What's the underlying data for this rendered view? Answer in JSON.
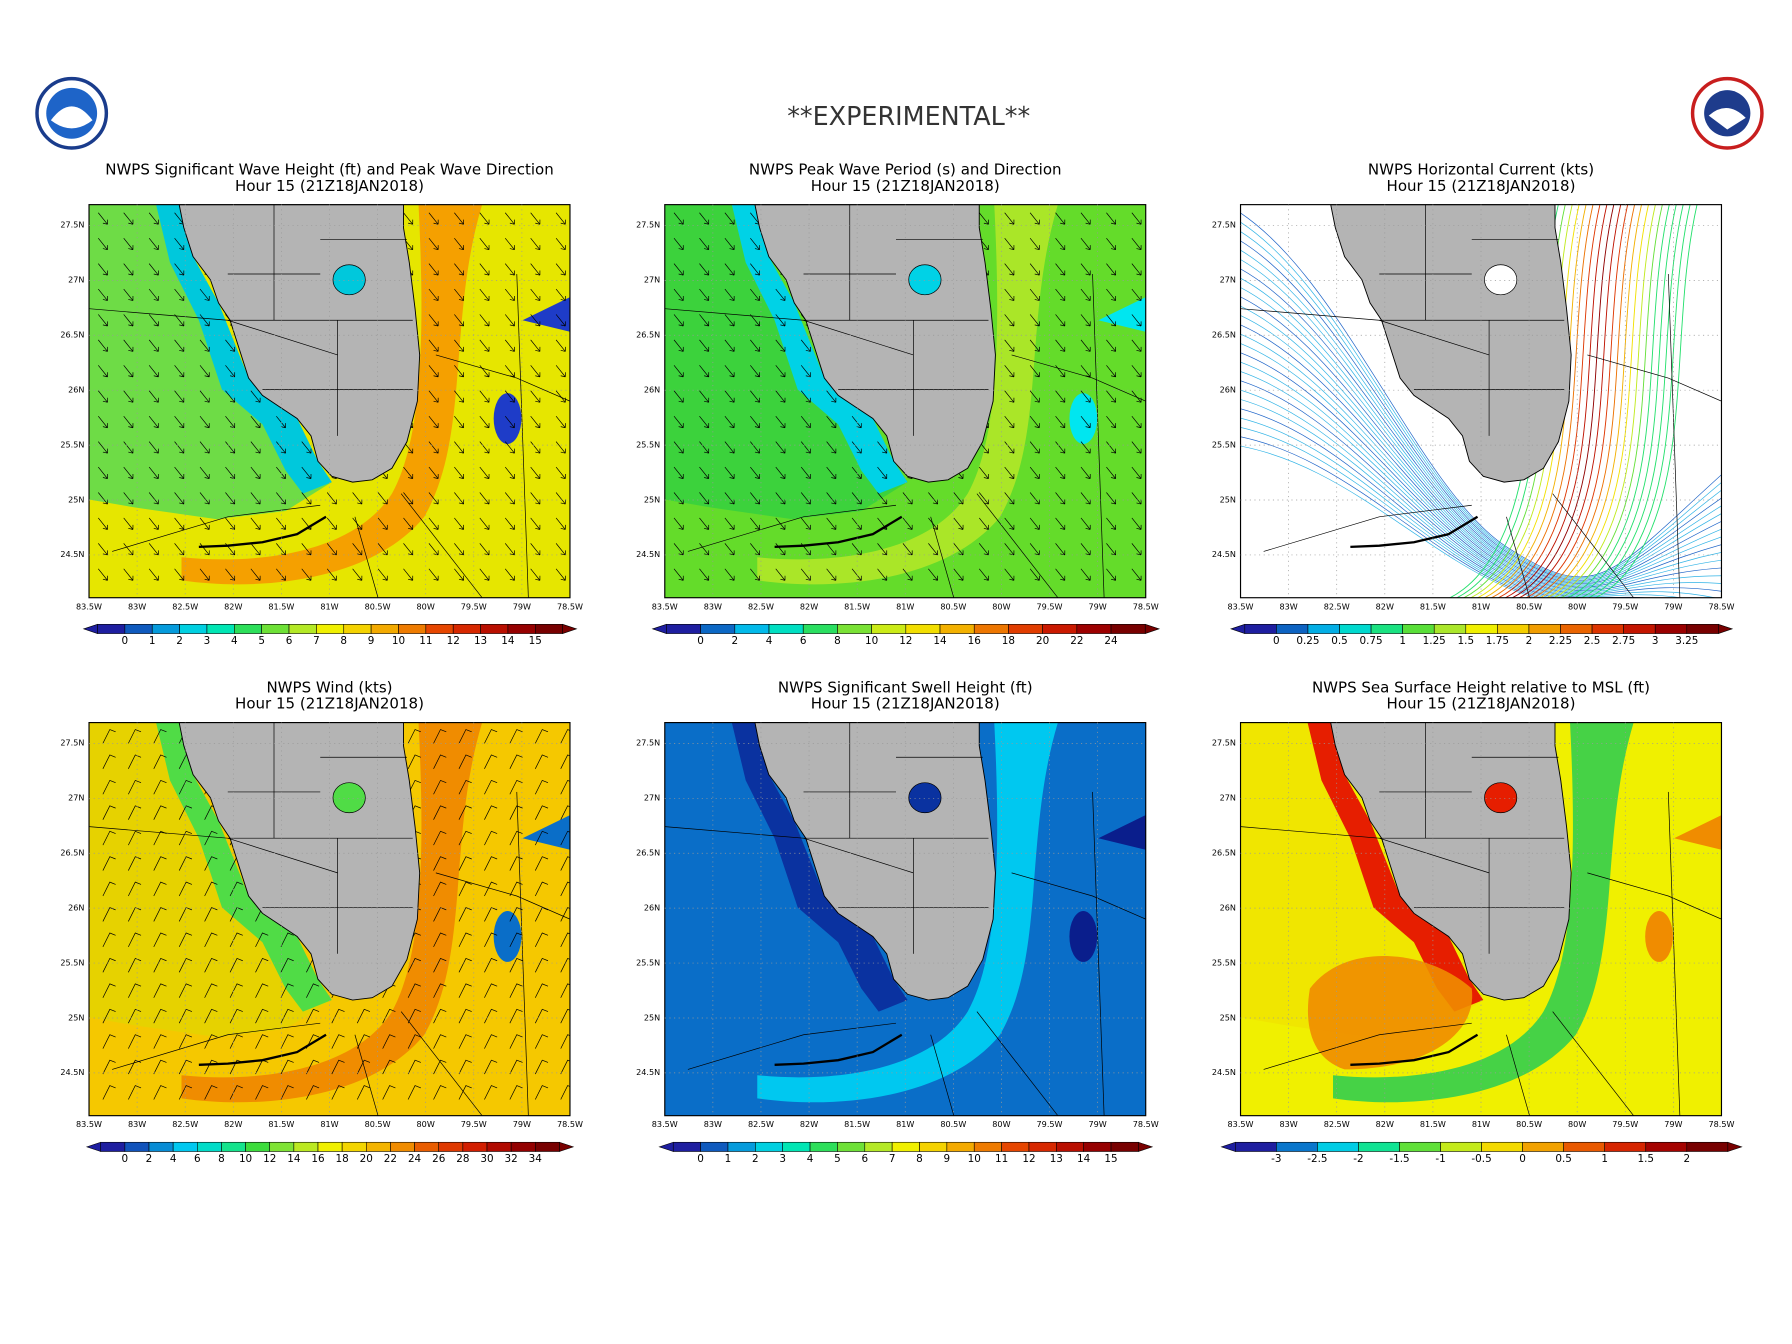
{
  "header": {
    "title": "**EXPERIMENTAL**"
  },
  "lat_labels": [
    "27.5N",
    "27N",
    "26.5N",
    "26N",
    "25.5N",
    "25N",
    "24.5N"
  ],
  "lon_labels": [
    "83.5W",
    "83W",
    "82.5W",
    "82W",
    "81.5W",
    "81W",
    "80.5W",
    "80W",
    "79.5W",
    "79W",
    "78.5W"
  ],
  "colorbar_palette": [
    "#1e1ea0",
    "#0a6ec8",
    "#00c8f0",
    "#00e6b4",
    "#3cdc3c",
    "#a0e632",
    "#f0f000",
    "#f5c800",
    "#f08c00",
    "#e64600",
    "#d21e00",
    "#a00000",
    "#780000"
  ],
  "panels": [
    {
      "title": "NWPS Significant Wave Height (ft) and Peak Wave Direction",
      "subtitle": "Hour 15 (21Z18JAN2018)",
      "style": "wave",
      "colorbar_ticks": [
        0,
        1,
        2,
        3,
        4,
        5,
        6,
        7,
        8,
        9,
        10,
        11,
        12,
        13,
        14,
        15
      ]
    },
    {
      "title": "NWPS Peak Wave Period (s) and Direction",
      "subtitle": "Hour 15 (21Z18JAN2018)",
      "style": "period",
      "colorbar_ticks": [
        0,
        2,
        4,
        6,
        8,
        10,
        12,
        14,
        16,
        18,
        20,
        22,
        24
      ]
    },
    {
      "title": "NWPS Horizontal Current (kts)",
      "subtitle": "Hour 15 (21Z18JAN2018)",
      "style": "current",
      "colorbar_ticks": [
        0,
        0.25,
        0.5,
        0.75,
        1,
        1.25,
        1.5,
        1.75,
        2,
        2.25,
        2.5,
        2.75,
        3,
        3.25
      ]
    },
    {
      "title": "NWPS Wind (kts)",
      "subtitle": "Hour 15 (21Z18JAN2018)",
      "style": "wind",
      "colorbar_ticks": [
        0,
        2,
        4,
        6,
        8,
        10,
        12,
        14,
        16,
        18,
        20,
        22,
        24,
        26,
        28,
        30,
        32,
        34
      ]
    },
    {
      "title": "NWPS Significant Swell Height (ft)",
      "subtitle": "Hour 15 (21Z18JAN2018)",
      "style": "swell",
      "colorbar_ticks": [
        0,
        1,
        2,
        3,
        4,
        5,
        6,
        7,
        8,
        9,
        10,
        11,
        12,
        13,
        14,
        15
      ]
    },
    {
      "title": "NWPS Sea Surface Height relative to MSL (ft)",
      "subtitle": "Hour 15 (21Z18JAN2018)",
      "style": "ssh",
      "colorbar_ticks": [
        -3,
        -2.5,
        -2,
        -1.5,
        -1,
        -0.5,
        0,
        0.5,
        1,
        1.5,
        2
      ]
    }
  ]
}
